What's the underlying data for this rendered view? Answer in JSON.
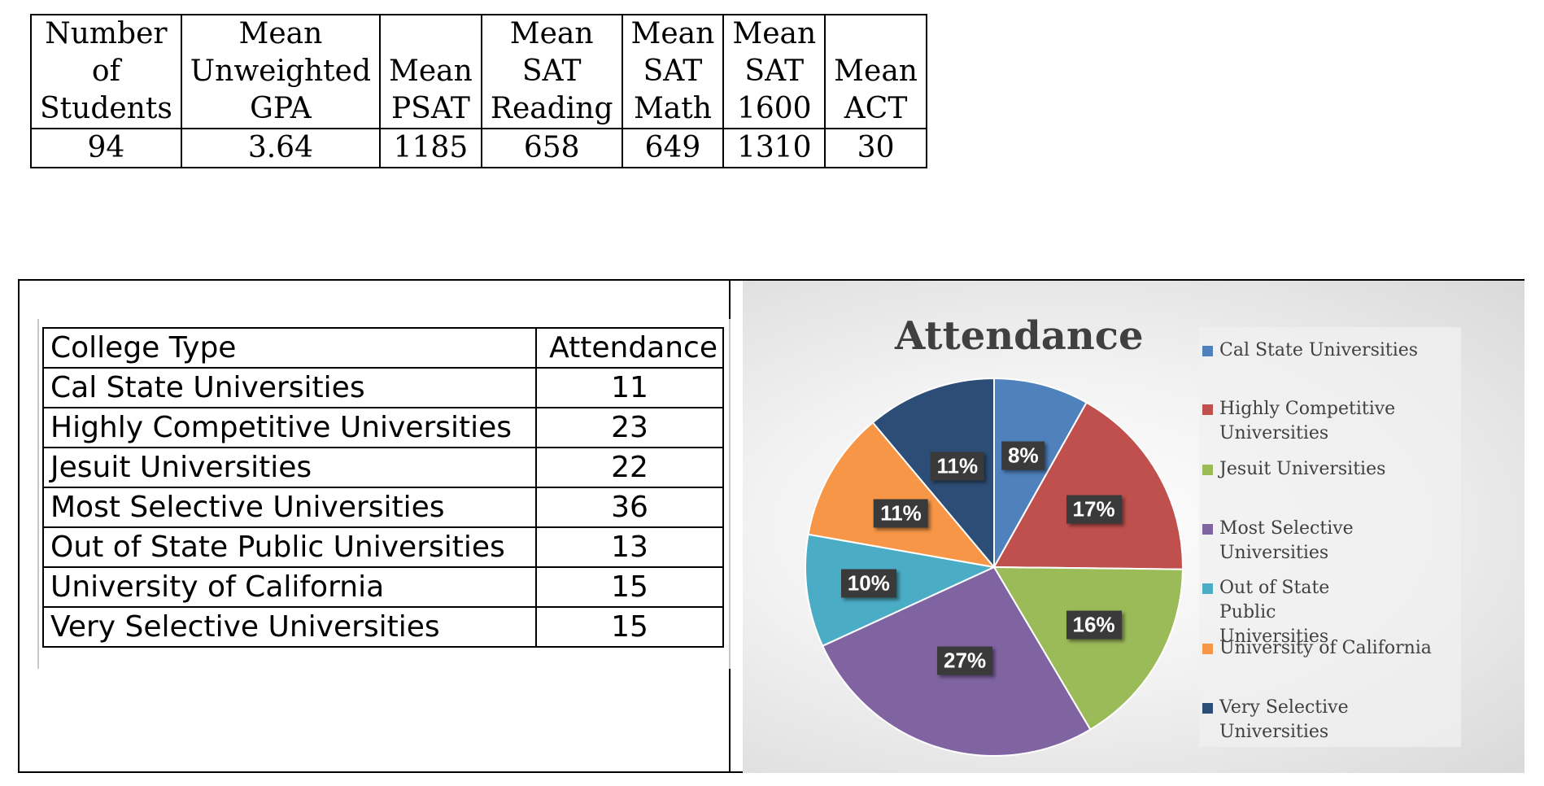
{
  "stats_table": {
    "headers": [
      [
        "Number",
        "of",
        "Students"
      ],
      [
        "Mean",
        "Unweighted",
        "GPA"
      ],
      [
        "Mean",
        "PSAT"
      ],
      [
        "Mean",
        "SAT",
        "Reading"
      ],
      [
        "Mean",
        "SAT",
        "Math"
      ],
      [
        "Mean",
        "SAT",
        "1600"
      ],
      [
        "Mean",
        "ACT"
      ]
    ],
    "values": [
      "94",
      "3.64",
      "1185",
      "658",
      "649",
      "1310",
      "30"
    ]
  },
  "college_table": {
    "header": {
      "type": "College Type",
      "attendance": "Attendance"
    },
    "rows": [
      {
        "type": "Cal State Universities",
        "attendance": "11"
      },
      {
        "type": "Highly Competitive Universities",
        "attendance": "23"
      },
      {
        "type": "Jesuit Universities",
        "attendance": "22"
      },
      {
        "type": "Most Selective Universities",
        "attendance": "36"
      },
      {
        "type": "Out of State Public Universities",
        "attendance": "13"
      },
      {
        "type": "University of California",
        "attendance": "15"
      },
      {
        "type": "Very Selective Universities",
        "attendance": "15"
      }
    ]
  },
  "chart_data": {
    "type": "pie",
    "title": "Attendance",
    "categories": [
      "Cal State Universities",
      "Highly Competitive Universities",
      "Jesuit Universities",
      "Most Selective Universities",
      "Out of State Public Universities",
      "University of California",
      "Very Selective Universities"
    ],
    "values": [
      11,
      23,
      22,
      36,
      13,
      15,
      15
    ],
    "data_labels": [
      "8%",
      "17%",
      "16%",
      "27%",
      "10%",
      "11%",
      "11%"
    ],
    "colors": [
      "#4f81bd",
      "#c0504d",
      "#9bbb59",
      "#8064a2",
      "#4bacc6",
      "#f79646",
      "#2c4d75"
    ],
    "legend_position": "right"
  }
}
